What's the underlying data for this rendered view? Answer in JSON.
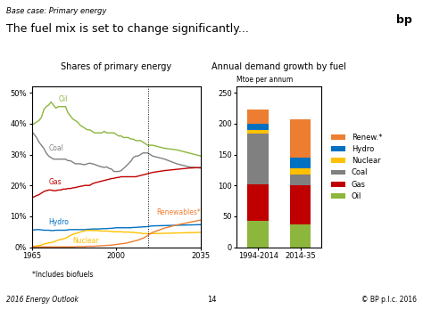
{
  "title": "The fuel mix is set to change significantly...",
  "subtitle": "Base case: Primary energy",
  "annotations": [
    "2016 Energy Outlook",
    "14",
    "© BP p.l.c. 2016",
    "bp"
  ],
  "chart_data": [
    {
      "type": "line",
      "title": "Shares of primary energy",
      "annotations": [
        "*Includes biofuels"
      ],
      "x": [
        1965,
        1966,
        1967,
        1968,
        1969,
        1970,
        1971,
        1972,
        1973,
        1974,
        1975,
        1976,
        1977,
        1978,
        1979,
        1980,
        1981,
        1982,
        1983,
        1984,
        1985,
        1986,
        1987,
        1988,
        1989,
        1990,
        1991,
        1992,
        1993,
        1994,
        1995,
        1996,
        1997,
        1998,
        1999,
        2000,
        2001,
        2002,
        2003,
        2004,
        2005,
        2006,
        2007,
        2008,
        2009,
        2010,
        2011,
        2012,
        2013,
        2014,
        2015,
        2020,
        2025,
        2030,
        2035
      ],
      "xlim": [
        1965,
        2035
      ],
      "xticks": [
        1965,
        2000,
        2035
      ],
      "ylim": [
        0,
        0.52
      ],
      "yticks": [
        {
          "value": 0,
          "label": "0%"
        },
        {
          "value": 0.1,
          "label": "10%"
        },
        {
          "value": 0.2,
          "label": "20%"
        },
        {
          "value": 0.3,
          "label": "30%"
        },
        {
          "value": 0.4,
          "label": "40%"
        },
        {
          "value": 0.5,
          "label": "50%"
        }
      ],
      "vline": 2013,
      "series": [
        {
          "name": "Oil",
          "color": "#8db63c",
          "values": [
            0.395,
            0.4,
            0.405,
            0.41,
            0.42,
            0.445,
            0.455,
            0.46,
            0.47,
            0.46,
            0.45,
            0.455,
            0.455,
            0.455,
            0.455,
            0.435,
            0.425,
            0.415,
            0.41,
            0.405,
            0.395,
            0.39,
            0.385,
            0.38,
            0.38,
            0.375,
            0.37,
            0.37,
            0.37,
            0.37,
            0.375,
            0.37,
            0.37,
            0.37,
            0.37,
            0.365,
            0.36,
            0.36,
            0.355,
            0.355,
            0.355,
            0.35,
            0.35,
            0.345,
            0.345,
            0.345,
            0.34,
            0.335,
            0.33,
            0.33,
            0.33,
            0.32,
            0.315,
            0.305,
            0.295
          ]
        },
        {
          "name": "Coal",
          "color": "#808080",
          "values": [
            0.375,
            0.365,
            0.355,
            0.34,
            0.33,
            0.32,
            0.305,
            0.295,
            0.29,
            0.285,
            0.285,
            0.285,
            0.285,
            0.285,
            0.285,
            0.28,
            0.28,
            0.275,
            0.27,
            0.27,
            0.27,
            0.268,
            0.267,
            0.27,
            0.272,
            0.27,
            0.268,
            0.265,
            0.262,
            0.26,
            0.258,
            0.26,
            0.255,
            0.253,
            0.245,
            0.245,
            0.245,
            0.248,
            0.255,
            0.262,
            0.27,
            0.278,
            0.29,
            0.295,
            0.295,
            0.3,
            0.305,
            0.305,
            0.305,
            0.3,
            0.295,
            0.285,
            0.27,
            0.26,
            0.256
          ]
        },
        {
          "name": "Gas",
          "color": "#c00000",
          "values": [
            0.16,
            0.163,
            0.167,
            0.17,
            0.175,
            0.18,
            0.183,
            0.185,
            0.185,
            0.183,
            0.183,
            0.185,
            0.185,
            0.188,
            0.188,
            0.19,
            0.19,
            0.192,
            0.193,
            0.195,
            0.197,
            0.198,
            0.2,
            0.2,
            0.2,
            0.205,
            0.208,
            0.21,
            0.212,
            0.214,
            0.216,
            0.218,
            0.22,
            0.222,
            0.223,
            0.225,
            0.226,
            0.228,
            0.228,
            0.228,
            0.228,
            0.228,
            0.228,
            0.228,
            0.23,
            0.232,
            0.234,
            0.236,
            0.238,
            0.24,
            0.242,
            0.248,
            0.252,
            0.256,
            0.258
          ]
        },
        {
          "name": "Hydro",
          "color": "#0070c0",
          "values": [
            0.055,
            0.056,
            0.057,
            0.057,
            0.056,
            0.055,
            0.055,
            0.055,
            0.054,
            0.054,
            0.055,
            0.055,
            0.055,
            0.055,
            0.055,
            0.056,
            0.057,
            0.057,
            0.057,
            0.057,
            0.057,
            0.057,
            0.057,
            0.058,
            0.058,
            0.059,
            0.059,
            0.059,
            0.059,
            0.06,
            0.06,
            0.06,
            0.061,
            0.061,
            0.062,
            0.063,
            0.063,
            0.063,
            0.063,
            0.063,
            0.063,
            0.063,
            0.064,
            0.064,
            0.065,
            0.065,
            0.066,
            0.066,
            0.067,
            0.068,
            0.069,
            0.07,
            0.071,
            0.072,
            0.073
          ]
        },
        {
          "name": "Nuclear",
          "color": "#ffc000",
          "values": [
            0.002,
            0.003,
            0.004,
            0.005,
            0.007,
            0.01,
            0.012,
            0.014,
            0.015,
            0.017,
            0.02,
            0.023,
            0.025,
            0.027,
            0.029,
            0.033,
            0.038,
            0.042,
            0.044,
            0.046,
            0.049,
            0.051,
            0.053,
            0.055,
            0.054,
            0.054,
            0.054,
            0.054,
            0.053,
            0.052,
            0.052,
            0.052,
            0.052,
            0.051,
            0.05,
            0.05,
            0.05,
            0.05,
            0.049,
            0.049,
            0.049,
            0.048,
            0.048,
            0.047,
            0.046,
            0.046,
            0.044,
            0.044,
            0.044,
            0.044,
            0.044,
            0.045,
            0.046,
            0.047,
            0.048
          ]
        },
        {
          "name": "Renewables*",
          "color": "#ed7d31",
          "values": [
            0.001,
            0.001,
            0.001,
            0.001,
            0.001,
            0.001,
            0.001,
            0.001,
            0.001,
            0.001,
            0.001,
            0.001,
            0.001,
            0.001,
            0.001,
            0.001,
            0.001,
            0.001,
            0.001,
            0.002,
            0.002,
            0.002,
            0.002,
            0.003,
            0.003,
            0.003,
            0.003,
            0.004,
            0.004,
            0.005,
            0.005,
            0.006,
            0.006,
            0.007,
            0.008,
            0.009,
            0.01,
            0.011,
            0.012,
            0.013,
            0.015,
            0.017,
            0.019,
            0.021,
            0.023,
            0.026,
            0.029,
            0.033,
            0.038,
            0.043,
            0.048,
            0.062,
            0.072,
            0.08,
            0.088
          ]
        }
      ]
    },
    {
      "type": "bar",
      "stacked": true,
      "title": "Annual demand growth by fuel",
      "subtitle": "Mtoe per annum",
      "categories": [
        "1994-2014",
        "2014-35"
      ],
      "ylim": [
        0,
        260
      ],
      "yticks": [
        0,
        50,
        100,
        150,
        200,
        250
      ],
      "legend": "center left",
      "series": [
        {
          "name": "Oil",
          "color": "#8db63c",
          "values": [
            42,
            37
          ]
        },
        {
          "name": "Gas",
          "color": "#c00000",
          "values": [
            60,
            64
          ]
        },
        {
          "name": "Coal",
          "color": "#808080",
          "values": [
            82,
            17
          ]
        },
        {
          "name": "Nuclear",
          "color": "#ffc000",
          "values": [
            6,
            10
          ]
        },
        {
          "name": "Hydro",
          "color": "#0070c0",
          "values": [
            9,
            17
          ]
        },
        {
          "name": "Renew.*",
          "color": "#ed7d31",
          "values": [
            24,
            62
          ]
        }
      ]
    }
  ]
}
